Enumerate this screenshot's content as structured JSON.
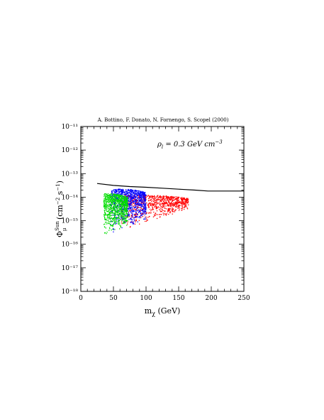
{
  "chart_data": {
    "type": "scatter",
    "credit": "A. Bottino, F. Donato, N. Fornengo, S. Scopel (2000)",
    "annotation": "ρl = 0.3 GeV cm⁻³",
    "xlabel": "mχ (GeV)",
    "ylabel": "Φμ^Sun (cm⁻² s⁻¹)",
    "xlim": [
      0,
      250
    ],
    "ylim_log10": [
      -18,
      -11
    ],
    "x_ticks": [
      0,
      50,
      100,
      150,
      200,
      250
    ],
    "x_tick_labels": [
      "0",
      "50",
      "100",
      "150",
      "200",
      "250"
    ],
    "y_ticks_log10": [
      -18,
      -17,
      -16,
      -15,
      -14,
      -13,
      -12,
      -11
    ],
    "y_tick_labels": [
      "10⁻¹⁸",
      "10⁻¹⁷",
      "10⁻¹⁶",
      "10⁻¹⁵",
      "10⁻¹⁴",
      "10⁻¹³",
      "10⁻¹²",
      "10⁻¹¹"
    ],
    "scale": "log-y",
    "grid": false,
    "limit_curve": {
      "color": "#000000",
      "x": [
        25,
        50,
        75,
        100,
        125,
        150,
        175,
        195,
        250
      ],
      "y_log10": [
        -13.42,
        -13.5,
        -13.55,
        -13.58,
        -13.62,
        -13.66,
        -13.7,
        -13.74,
        -13.74
      ]
    },
    "series": [
      {
        "color": "#ff0000",
        "x_range": [
          60,
          165
        ],
        "log10_lower_at_xmin": -15.75,
        "log10_lower_at_xmax": -14.6,
        "log10_upper": -13.9
      },
      {
        "color": "#0000ff",
        "x_range": [
          45,
          100
        ],
        "log10_lower_at_xmin": -16.0,
        "log10_lower_at_xmax": -15.2,
        "log10_upper": -13.65
      },
      {
        "color": "#00dd00",
        "x_range": [
          35,
          72
        ],
        "log10_lower_at_xmin": -15.95,
        "log10_lower_at_xmax": -15.5,
        "log10_upper": -13.85
      }
    ]
  }
}
